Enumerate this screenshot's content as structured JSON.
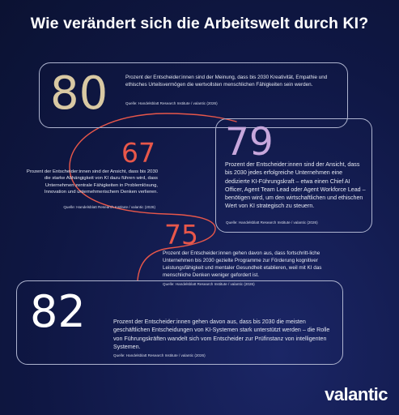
{
  "title": "Wie verändert sich die Arbeitswelt durch KI?",
  "colors": {
    "accent_red": "#e8574a",
    "gold": "#d9c9a3",
    "lavender": "#c7a7dc",
    "white": "#ffffff",
    "frame": "#aeb4cf"
  },
  "stats": [
    {
      "value": "80",
      "text": "Prozent der Entscheider:innen sind der Meinung, dass bis 2030 Kreativität, Empathie und ethisches Urteilsvermögen die wertvollsten menschlichen Fähigkeiten sein werden.",
      "source": "Quelle: Handelsblatt Research Institute / valantic (2026)"
    },
    {
      "value": "67",
      "text": "Prozent der Entscheider:innen sind der Ansicht, dass bis 2030 die starke Abhängigkeit von KI dazu führen wird, dass Unternehmen zentrale Fähigkeiten in Problemlösung, Innovation und unternehmerischem Denken verlieren.",
      "source": "Quelle: Handelsblatt Research Institute / valantic (2026)"
    },
    {
      "value": "79",
      "text": "Prozent der Entscheider:innen sind der Ansicht, dass bis 2030 jedes erfolgreiche Unternehmen eine dedizierte KI-Führungskraft – etwa einen Chief AI Officer, Agent Team Lead oder Agent Workforce Lead – benötigen wird, um den wirtschaftlichen und ethischen Wert von KI strategisch zu steuern.",
      "source": "Quelle: Handelsblatt Research Institute / valantic (2026)"
    },
    {
      "value": "75",
      "text": "Prozent der Entscheider:innen gehen davon aus, dass fortschritt-liche Unternehmen bis 2030 gezielte Programme zur Förderung kognitiver Leistungsfähigkeit und mentaler Gesundheit etablieren, weil mit KI das menschliche Denken weniger gefordert ist.",
      "source": "Quelle: Handelsblatt Research Institute / valantic (2026)"
    },
    {
      "value": "82",
      "text": "Prozent der Entscheider:innen gehen davon aus, dass bis 2030 die meisten geschäftlichen Entscheidungen von KI-Systemen stark unterstützt werden – die Rolle von Führungskräften wandelt sich vom Entscheider zur Prüfinstanz von intelligenten Systemen.",
      "source": "Quelle: Handelsblatt Research Institute / valantic (2026)"
    }
  ],
  "brand": "valantic"
}
